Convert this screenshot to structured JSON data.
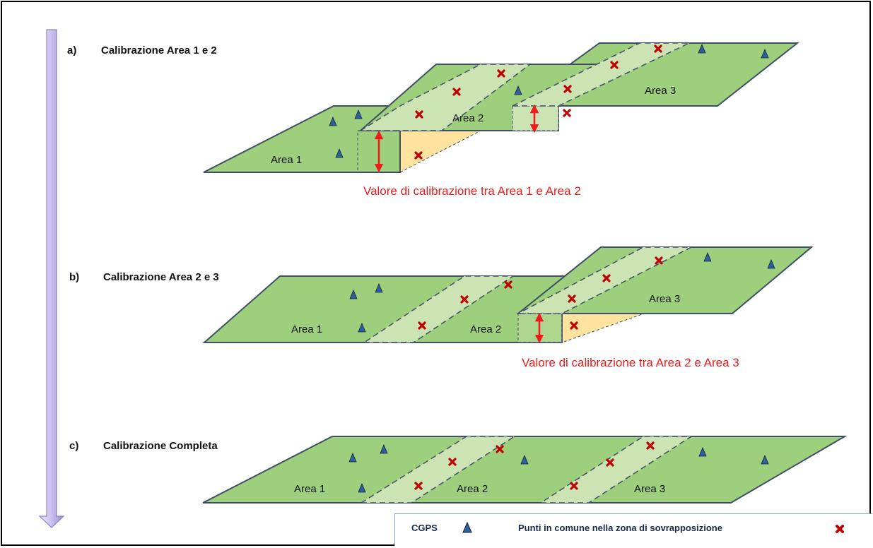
{
  "steps": [
    {
      "letter": "a)",
      "title": "Calibrazione Area 1 e 2"
    },
    {
      "letter": "b)",
      "title": "Calibrazione Area 2 e 3"
    },
    {
      "letter": "c)",
      "title": "Calibrazione  Completa"
    }
  ],
  "areas": {
    "area1": "Area 1",
    "area2": "Area 2",
    "area3": "Area 3"
  },
  "notes": {
    "cal12": "Valore di calibrazione tra Area 1 e Area 2",
    "cal23": "Valore di calibrazione tra Area 2 e Area 3"
  },
  "legend": {
    "cgps": "CGPS",
    "common_points": "Punti in comune nella zona di sovrapposizione"
  },
  "colors": {
    "area_fill": "#9ecf7c",
    "overlap_fill": "#cce3b4",
    "edge": "#3f4f66",
    "gap_fill": "#ffe39f",
    "cross": "#c00000",
    "triangle": "#2d5f9a",
    "arrow": "#ee1b1b",
    "time_arrow": "#b4a9d9"
  }
}
